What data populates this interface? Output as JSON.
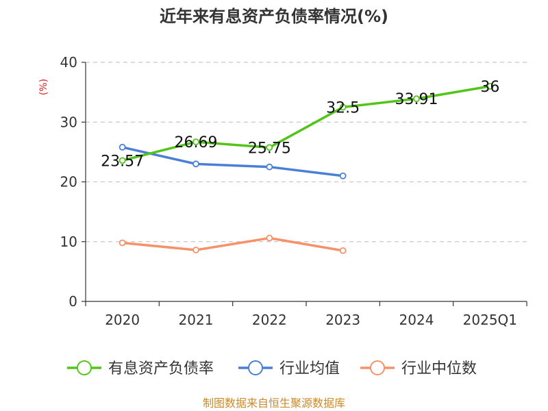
{
  "chart_data": {
    "type": "line",
    "title": "近年来有息资产负债率情况(%)",
    "ylabel": "(%)",
    "xlabel": "",
    "categories": [
      "2020",
      "2021",
      "2022",
      "2023",
      "2024",
      "2025Q1"
    ],
    "ylim": [
      0,
      40
    ],
    "yticks": [
      0,
      10,
      20,
      30,
      40
    ],
    "grid": true,
    "legend_position": "bottom",
    "series": [
      {
        "name": "有息资产负债率",
        "color": "#52c41a",
        "values": [
          23.57,
          26.69,
          25.75,
          32.5,
          33.91,
          36
        ],
        "data_labels": [
          "23.57",
          "26.69",
          "25.75",
          "32.5",
          "33.91",
          "36"
        ]
      },
      {
        "name": "行业均值",
        "color": "#4a7fd8",
        "values": [
          25.8,
          23.0,
          22.5,
          21.0,
          null,
          null
        ]
      },
      {
        "name": "行业中位数",
        "color": "#f5926a",
        "values": [
          9.8,
          8.6,
          10.6,
          8.5,
          null,
          null
        ]
      }
    ]
  },
  "footer": {
    "source": "制图数据来自恒生聚源数据库"
  }
}
